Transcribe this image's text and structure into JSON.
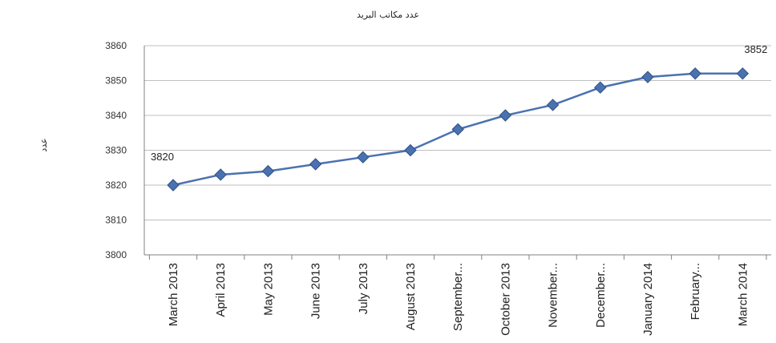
{
  "chart_data": {
    "type": "line",
    "title": "عدد مكاتب البريد",
    "ylabel": "عدد",
    "xlabel": "",
    "categories": [
      "March 2013",
      "April 2013",
      "May 2013",
      "June 2013",
      "July 2013",
      "August 2013",
      "September...",
      "October 2013",
      "November...",
      "December...",
      "January 2014",
      "February...",
      "March 2014"
    ],
    "series": [
      {
        "values": [
          3820,
          3823,
          3824,
          3826,
          3828,
          3830,
          3836,
          3840,
          3843,
          3848,
          3851,
          3852,
          3852
        ],
        "color": "#4a72b0"
      }
    ],
    "ylim": [
      3800,
      3860
    ],
    "yticks": [
      3800,
      3810,
      3820,
      3830,
      3840,
      3850,
      3860
    ],
    "grid": true,
    "data_labels": [
      {
        "index": 0,
        "text": "3820"
      },
      {
        "index": 12,
        "text": "3852"
      }
    ]
  }
}
